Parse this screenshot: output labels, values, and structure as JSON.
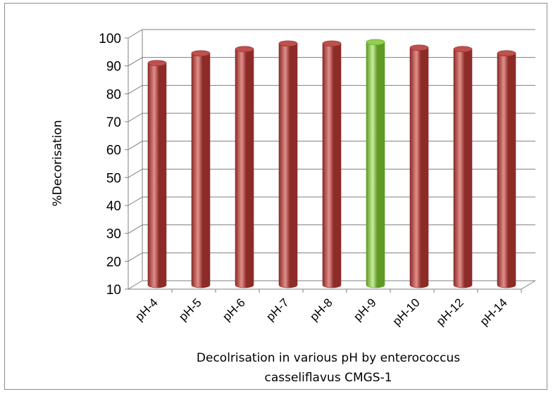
{
  "chart_data": {
    "type": "bar",
    "style": "3d-cylinder",
    "categories": [
      "pH-4",
      "pH-5",
      "pH-6",
      "pH-7",
      "pH-8",
      "pH-9",
      "pH-10",
      "pH-12",
      "pH-14"
    ],
    "values": [
      89.5,
      93,
      94.5,
      96.5,
      96.5,
      97,
      95,
      94.5,
      93
    ],
    "highlight_index": 5,
    "title": "",
    "xlabel": "Decolrisation in various pH by  enterococcus casseliflavus CMGS-1",
    "xlabel_lines": [
      "Decolrisation in various pH by  enterococcus",
      "casseliflavus CMGS-1"
    ],
    "ylabel": "%Decorisation",
    "ylim": [
      10,
      100
    ],
    "yticks": [
      10,
      20,
      30,
      40,
      50,
      60,
      70,
      80,
      90,
      100
    ],
    "grid": true,
    "legend": "none",
    "colors": {
      "bar": "#c0504d",
      "bar_dark": "#8c2b28",
      "bar_light": "#e28f8b",
      "highlight": "#92d050",
      "highlight_dark": "#5f9a24",
      "highlight_light": "#c8ee9c",
      "grid": "#7f7f7f"
    }
  }
}
